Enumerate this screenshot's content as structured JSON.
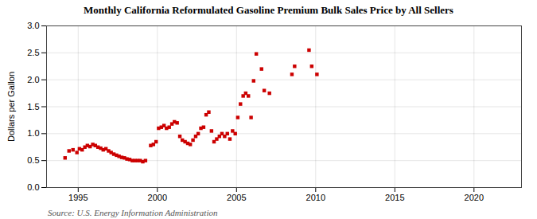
{
  "chart_data": {
    "type": "scatter",
    "title": "Monthly California Reformulated Gasoline Premium Bulk Sales Price by All Sellers",
    "ylabel": "Dollars per Gallon",
    "annotations": [
      "Source: U.S. Energy Information Administration"
    ],
    "color": "#cc0000",
    "marker": "square",
    "grid": true,
    "xlim": [
      1993.0,
      2023.0
    ],
    "ylim": [
      0.0,
      3.0
    ],
    "xticks": [
      1995,
      2000,
      2005,
      2010,
      2015,
      2020
    ],
    "yticks": [
      {
        "value": 0,
        "label": "0.0"
      },
      0.5,
      {
        "value": 1,
        "label": "1.0"
      },
      1.5,
      {
        "value": 2,
        "label": "2.0"
      },
      2.5,
      {
        "value": 3,
        "label": "3.0"
      }
    ],
    "x": [
      1994.17,
      1994.42,
      1994.67,
      1994.92,
      1995.08,
      1995.25,
      1995.42,
      1995.58,
      1995.75,
      1995.92,
      1996.08,
      1996.25,
      1996.42,
      1996.58,
      1996.75,
      1996.92,
      1997.08,
      1997.25,
      1997.42,
      1997.58,
      1997.75,
      1997.92,
      1998.08,
      1998.25,
      1998.42,
      1998.58,
      1998.75,
      1998.92,
      1999.08,
      1999.25,
      1999.58,
      1999.75,
      1999.92,
      2000.08,
      2000.25,
      2000.42,
      2000.58,
      2000.75,
      2000.92,
      2001.08,
      2001.25,
      2001.42,
      2001.58,
      2001.75,
      2001.92,
      2002.08,
      2002.25,
      2002.42,
      2002.58,
      2002.75,
      2002.92,
      2003.08,
      2003.25,
      2003.42,
      2003.58,
      2003.75,
      2003.92,
      2004.08,
      2004.25,
      2004.42,
      2004.58,
      2004.75,
      2004.92,
      2005.08,
      2005.25,
      2005.42,
      2005.58,
      2005.75,
      2005.92,
      2006.08,
      2006.25,
      2006.58,
      2006.75,
      2007.08,
      2008.5,
      2008.67,
      2009.58,
      2009.75,
      2010.08
    ],
    "values": [
      0.55,
      0.68,
      0.7,
      0.65,
      0.72,
      0.7,
      0.75,
      0.78,
      0.76,
      0.8,
      0.78,
      0.75,
      0.73,
      0.7,
      0.72,
      0.68,
      0.65,
      0.62,
      0.6,
      0.58,
      0.56,
      0.55,
      0.53,
      0.52,
      0.5,
      0.5,
      0.5,
      0.5,
      0.48,
      0.5,
      0.78,
      0.8,
      0.85,
      1.1,
      1.12,
      1.15,
      1.1,
      1.12,
      1.18,
      1.22,
      1.2,
      0.95,
      0.88,
      0.85,
      0.82,
      0.8,
      0.88,
      0.95,
      1.0,
      1.1,
      1.12,
      1.35,
      1.4,
      1.05,
      0.85,
      0.9,
      0.95,
      1.0,
      0.95,
      1.0,
      0.9,
      1.05,
      1.0,
      1.3,
      1.55,
      1.7,
      1.75,
      1.7,
      1.3,
      1.98,
      2.48,
      2.2,
      1.8,
      1.75,
      2.1,
      2.25,
      2.55,
      2.25,
      2.1
    ]
  }
}
